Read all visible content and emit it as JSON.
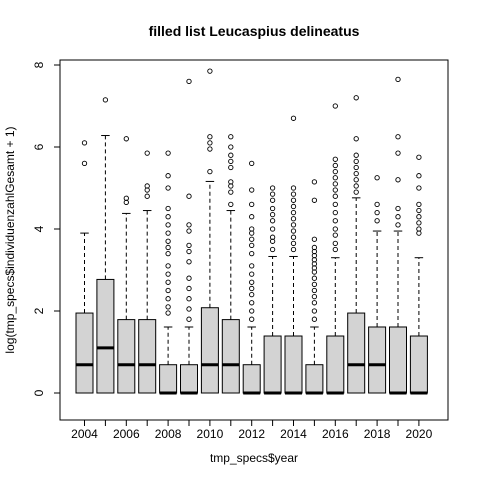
{
  "chart_data": {
    "type": "boxplot",
    "title": "filled list Leucaspius delineatus",
    "xlabel": "tmp_specs$year",
    "ylabel": "log(tmp_specs$individuenzahlGesamt + 1)",
    "ylim": [
      0,
      8
    ],
    "yticks": [
      0,
      2,
      4,
      6,
      8
    ],
    "xtick_labels": [
      "2004",
      "2006",
      "2008",
      "2010",
      "2012",
      "2014",
      "2016",
      "2018",
      "2020"
    ],
    "box_fill": "#d3d3d3",
    "categories": [
      "2004",
      "2005",
      "2006",
      "2007",
      "2008",
      "2009",
      "2010",
      "2011",
      "2012",
      "2013",
      "2014",
      "2015",
      "2016",
      "2017",
      "2018",
      "2019",
      "2020"
    ],
    "boxes": [
      {
        "year": "2004",
        "q1": 0,
        "median": 0.69,
        "q3": 1.95,
        "whisker_low": 0,
        "whisker_high": 3.9,
        "outliers": [
          5.6,
          6.1
        ]
      },
      {
        "year": "2005",
        "q1": 0,
        "median": 1.1,
        "q3": 2.77,
        "whisker_low": 0,
        "whisker_high": 6.28,
        "outliers": [
          7.15
        ]
      },
      {
        "year": "2006",
        "q1": 0,
        "median": 0.69,
        "q3": 1.79,
        "whisker_low": 0,
        "whisker_high": 4.38,
        "outliers": [
          4.65,
          4.75,
          6.2
        ]
      },
      {
        "year": "2007",
        "q1": 0,
        "median": 0.69,
        "q3": 1.79,
        "whisker_low": 0,
        "whisker_high": 4.45,
        "outliers": [
          4.8,
          4.95,
          5.05,
          5.85
        ]
      },
      {
        "year": "2008",
        "q1": 0,
        "median": 0,
        "q3": 0.69,
        "whisker_low": 0,
        "whisker_high": 1.61,
        "outliers": [
          1.95,
          2.1,
          2.3,
          2.5,
          2.7,
          2.9,
          3.1,
          3.4,
          3.55,
          3.7,
          3.9,
          4.1,
          4.3,
          4.5,
          5.0,
          5.3,
          5.85
        ]
      },
      {
        "year": "2009",
        "q1": 0,
        "median": 0,
        "q3": 0.69,
        "whisker_low": 0,
        "whisker_high": 1.61,
        "outliers": [
          1.8,
          2.05,
          2.3,
          2.55,
          2.8,
          3.2,
          3.45,
          3.6,
          3.95,
          4.1,
          4.8,
          7.6
        ]
      },
      {
        "year": "2010",
        "q1": 0,
        "median": 0.69,
        "q3": 2.08,
        "whisker_low": 0,
        "whisker_high": 5.16,
        "outliers": [
          5.4,
          5.95,
          6.1,
          6.25,
          7.85
        ]
      },
      {
        "year": "2011",
        "q1": 0,
        "median": 0.69,
        "q3": 1.79,
        "whisker_low": 0,
        "whisker_high": 4.45,
        "outliers": [
          4.6,
          4.9,
          5.05,
          5.15,
          5.5,
          5.65,
          5.8,
          6.0,
          6.25
        ]
      },
      {
        "year": "2012",
        "q1": 0,
        "median": 0,
        "q3": 0.69,
        "whisker_low": 0,
        "whisker_high": 1.61,
        "outliers": [
          1.8,
          2.0,
          2.2,
          2.4,
          2.55,
          2.7,
          2.9,
          3.1,
          3.4,
          3.6,
          3.75,
          3.9,
          4.0,
          4.3,
          4.6,
          4.95,
          5.6
        ]
      },
      {
        "year": "2013",
        "q1": 0,
        "median": 0,
        "q3": 1.39,
        "whisker_low": 0,
        "whisker_high": 3.33,
        "outliers": [
          3.5,
          3.7,
          3.8,
          4.0,
          4.2,
          4.35,
          4.5,
          4.7,
          4.85,
          5.0
        ]
      },
      {
        "year": "2014",
        "q1": 0,
        "median": 0,
        "q3": 1.39,
        "whisker_low": 0,
        "whisker_high": 3.33,
        "outliers": [
          3.5,
          3.65,
          3.8,
          3.95,
          4.1,
          4.25,
          4.4,
          4.55,
          4.7,
          4.85,
          5.0,
          6.7
        ]
      },
      {
        "year": "2015",
        "q1": 0,
        "median": 0,
        "q3": 0.69,
        "whisker_low": 0,
        "whisker_high": 1.61,
        "outliers": [
          1.8,
          2.0,
          2.2,
          2.35,
          2.5,
          2.65,
          2.8,
          2.95,
          3.05,
          3.15,
          3.25,
          3.35,
          3.45,
          3.55,
          3.75,
          4.7,
          5.15
        ]
      },
      {
        "year": "2016",
        "q1": 0,
        "median": 0,
        "q3": 1.39,
        "whisker_low": 0,
        "whisker_high": 3.3,
        "outliers": [
          3.5,
          3.65,
          3.85,
          4.0,
          4.2,
          4.4,
          4.6,
          4.8,
          4.95,
          5.1,
          5.25,
          5.4,
          5.55,
          5.7,
          7.0
        ]
      },
      {
        "year": "2017",
        "q1": 0,
        "median": 0.69,
        "q3": 1.95,
        "whisker_low": 0,
        "whisker_high": 4.76,
        "outliers": [
          4.9,
          5.05,
          5.2,
          5.35,
          5.5,
          5.65,
          5.8,
          6.2,
          7.2
        ]
      },
      {
        "year": "2018",
        "q1": 0,
        "median": 0.69,
        "q3": 1.61,
        "whisker_low": 0,
        "whisker_high": 3.95,
        "outliers": [
          4.2,
          4.4,
          4.6,
          5.25
        ]
      },
      {
        "year": "2019",
        "q1": 0,
        "median": 0,
        "q3": 1.61,
        "whisker_low": 0,
        "whisker_high": 3.95,
        "outliers": [
          4.1,
          4.3,
          4.5,
          5.2,
          5.85,
          6.25,
          7.65
        ]
      },
      {
        "year": "2020",
        "q1": 0,
        "median": 0,
        "q3": 1.39,
        "whisker_low": 0,
        "whisker_high": 3.3,
        "outliers": [
          3.9,
          4.0,
          4.15,
          4.3,
          4.45,
          4.6,
          5.0,
          5.3,
          5.75
        ]
      }
    ]
  }
}
